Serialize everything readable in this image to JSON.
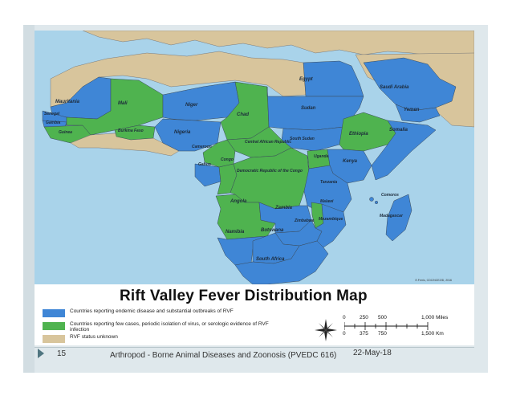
{
  "map": {
    "country_labels": {
      "egypt": "Egypt",
      "saudi_arabia": "Saudi Arabia",
      "yemen": "Yemen",
      "mauritania": "Mauritania",
      "mali": "Mali",
      "niger": "Niger",
      "chad": "Chad",
      "sudan": "Sudan",
      "senegal": "Senegal",
      "gambia": "Gambia",
      "guinea": "Guinea",
      "burkina_faso": "Burkina Faso",
      "nigeria": "Nigeria",
      "cameroon": "Cameroon",
      "car": "Central African Republic",
      "south_sudan": "South Sudan",
      "ethiopia": "Ethiopia",
      "somalia": "Somalia",
      "gabon": "Gabon",
      "congo": "Congo",
      "drc": "Democratic Republic of the Congo",
      "uganda": "Uganda",
      "kenya": "Kenya",
      "tanzania": "Tanzania",
      "comoros": "Comoros",
      "angola": "Angola",
      "malawi": "Malawi",
      "zambia": "Zambia",
      "zimbabwe": "Zimbabwe",
      "mozambique": "Mozambique",
      "madagascar": "Madagascar",
      "namibia": "Namibia",
      "botswana": "Botswana",
      "south_africa": "South Africa"
    },
    "credit": "E.Ferris, CDC/NCEZID, 2016"
  },
  "legend": {
    "title": "Rift Valley Fever Distribution Map",
    "items": [
      {
        "label": "Countries reporting endemic disease and substantial outbreaks of RVF",
        "color": "#3f86d6"
      },
      {
        "label": "Countries reporting few cases, periodic isolation of virus, or serologic evidence of RVF infection",
        "color": "#4fb34f"
      },
      {
        "label": "RVF status unknown",
        "color": "#d8c59c"
      }
    ],
    "scale": {
      "miles_ticks": [
        "0",
        "250",
        "500",
        "1,000 Miles"
      ],
      "km_ticks": [
        "0",
        "375",
        "750",
        "1,500 Km"
      ]
    }
  },
  "colors": {
    "endemic": "#3f86d6",
    "sporadic": "#4fb34f",
    "unknown": "#d8c59c",
    "water": "#a9d3ea"
  },
  "footer": {
    "slide_number": "15",
    "course": "Arthropod - Borne Animal Diseases and Zoonosis (PVEDC 616)",
    "date": "22-May-18"
  }
}
